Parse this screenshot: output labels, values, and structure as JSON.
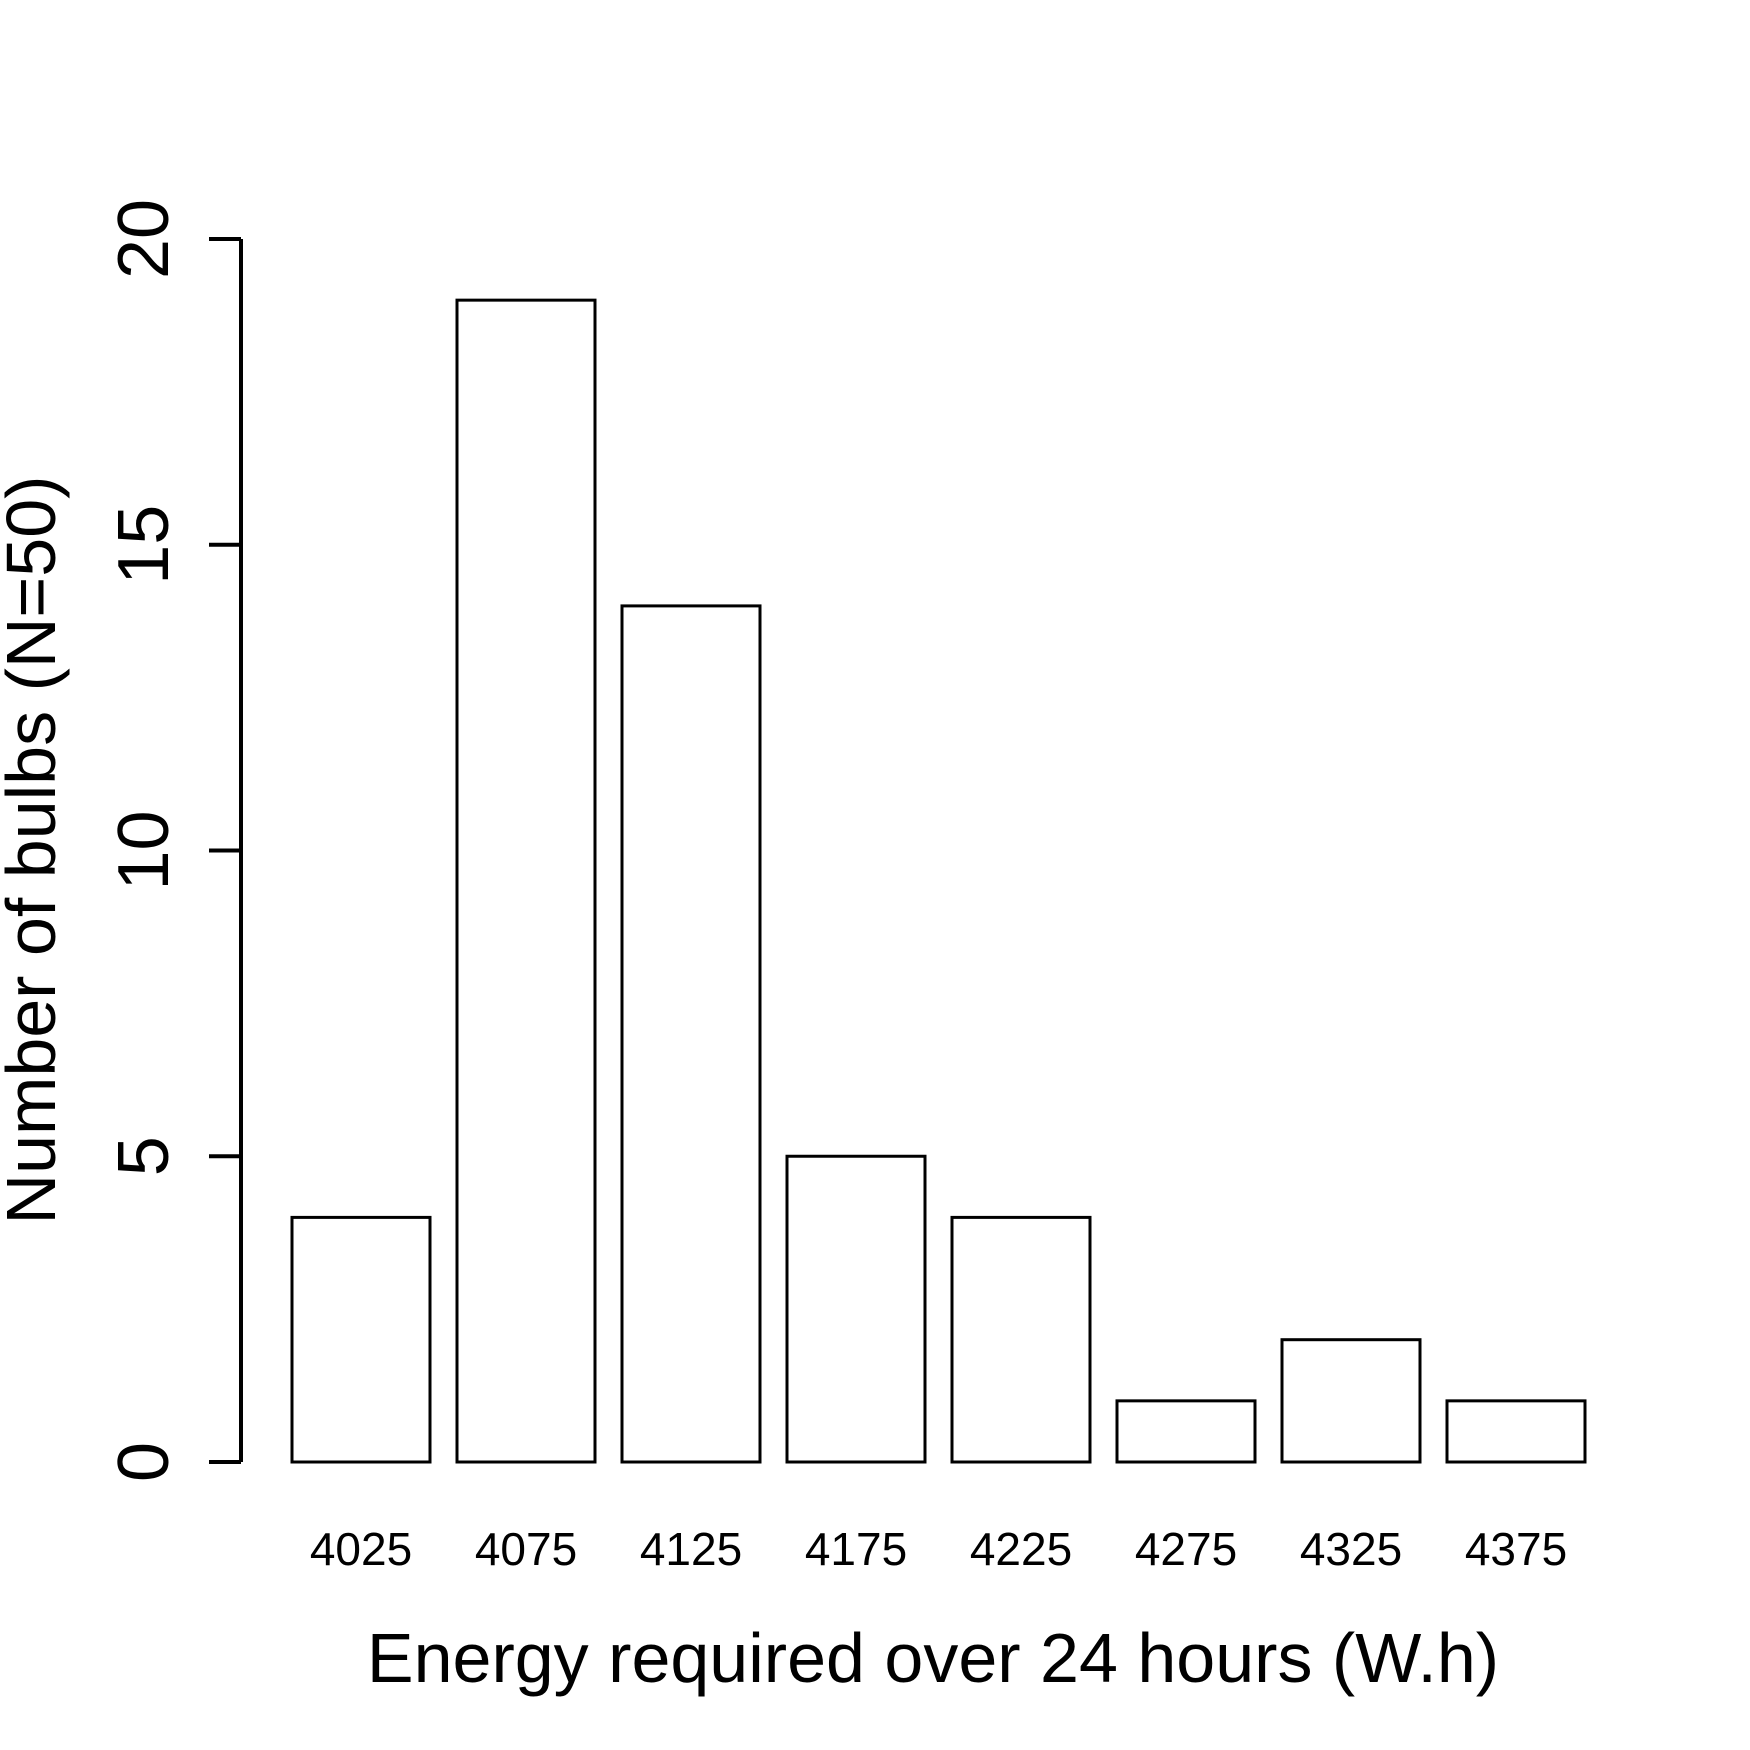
{
  "chart_data": {
    "type": "bar",
    "categories": [
      "4025",
      "4075",
      "4125",
      "4175",
      "4225",
      "4275",
      "4325",
      "4375"
    ],
    "values": [
      4,
      19,
      14,
      5,
      4,
      1,
      2,
      1
    ],
    "xlabel": "Energy required over 24 hours (W.h)",
    "ylabel": "Number of bulbs (N=50)",
    "ylim": [
      0,
      20
    ],
    "yticks": [
      0,
      5,
      10,
      15,
      20
    ],
    "grid": false,
    "legend": "none",
    "colors": {
      "bar_fill": "#ffffff",
      "bar_stroke": "#000000",
      "axis": "#000000"
    }
  }
}
